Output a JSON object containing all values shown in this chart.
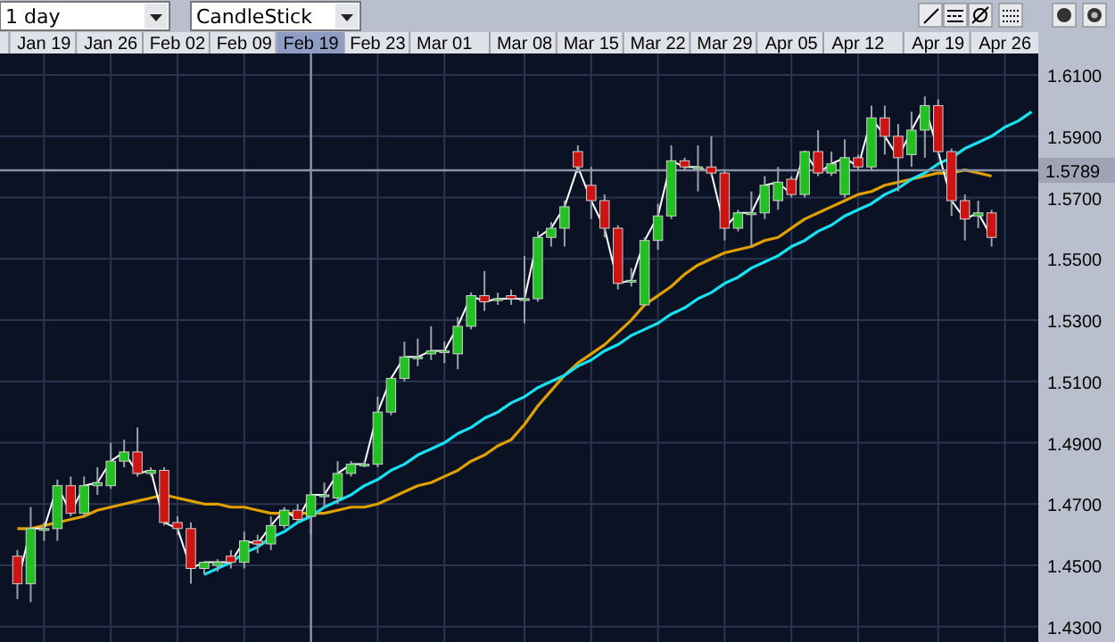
{
  "chart_data": {
    "type": "candlestick",
    "annotations": [
      "1 day",
      "CandleStick"
    ],
    "categories": [
      null,
      null,
      "Jan 19",
      null,
      null,
      null,
      null,
      "Jan 26",
      null,
      null,
      null,
      null,
      "Feb 02",
      null,
      null,
      null,
      null,
      "Feb 09",
      null,
      null,
      null,
      null,
      "Feb 19",
      null,
      null,
      null,
      null,
      "Feb 23",
      null,
      null,
      null,
      null,
      "Mar 01",
      null,
      null,
      null,
      null,
      null,
      "Mar 08",
      null,
      null,
      null,
      null,
      "Mar 15",
      null,
      null,
      null,
      null,
      "Mar 22",
      null,
      null,
      null,
      null,
      "Mar 29",
      null,
      null,
      null,
      null,
      "Apr 05",
      null,
      null,
      null,
      null,
      "Apr 12",
      null,
      null,
      null,
      null,
      null,
      "Apr 19",
      null,
      null,
      null,
      null,
      "Apr 26",
      null,
      null
    ],
    "ohlc": [
      [
        1.453,
        1.455,
        1.439,
        1.444
      ],
      [
        1.444,
        1.469,
        1.438,
        1.462
      ],
      [
        1.462,
        1.464,
        1.458,
        1.462
      ],
      [
        1.462,
        1.478,
        1.458,
        1.476
      ],
      [
        1.476,
        1.479,
        1.466,
        1.467
      ],
      [
        1.467,
        1.479,
        1.466,
        1.476
      ],
      [
        1.476,
        1.482,
        1.473,
        1.477
      ],
      [
        1.476,
        1.49,
        1.475,
        1.484
      ],
      [
        1.484,
        1.491,
        1.482,
        1.487
      ],
      [
        1.487,
        1.495,
        1.479,
        1.48
      ],
      [
        1.48,
        1.482,
        1.479,
        1.481
      ],
      [
        1.481,
        1.482,
        1.463,
        1.464
      ],
      [
        1.464,
        1.466,
        1.46,
        1.462
      ],
      [
        1.462,
        1.464,
        1.444,
        1.449
      ],
      [
        1.449,
        1.451,
        1.447,
        1.451
      ],
      [
        1.45,
        1.452,
        1.448,
        1.451
      ],
      [
        1.453,
        1.455,
        1.449,
        1.451
      ],
      [
        1.451,
        1.461,
        1.449,
        1.458
      ],
      [
        1.458,
        1.46,
        1.454,
        1.457
      ],
      [
        1.457,
        1.466,
        1.455,
        1.463
      ],
      [
        1.463,
        1.469,
        1.462,
        1.468
      ],
      [
        1.468,
        1.47,
        1.464,
        1.465
      ],
      [
        1.466,
        1.474,
        1.46,
        1.473
      ],
      [
        1.473,
        1.477,
        1.469,
        1.473
      ],
      [
        1.472,
        1.484,
        1.47,
        1.48
      ],
      [
        1.48,
        1.484,
        1.479,
        1.483
      ],
      [
        1.483,
        1.484,
        1.482,
        1.483
      ],
      [
        1.483,
        1.505,
        1.482,
        1.5
      ],
      [
        1.5,
        1.511,
        1.499,
        1.511
      ],
      [
        1.511,
        1.523,
        1.51,
        1.518
      ],
      [
        1.518,
        1.524,
        1.515,
        1.518
      ],
      [
        1.519,
        1.528,
        1.517,
        1.52
      ],
      [
        1.52,
        1.523,
        1.516,
        1.52
      ],
      [
        1.519,
        1.531,
        1.514,
        1.528
      ],
      [
        1.528,
        1.539,
        1.527,
        1.538
      ],
      [
        1.538,
        1.546,
        1.533,
        1.536
      ],
      [
        1.537,
        1.539,
        1.535,
        1.537
      ],
      [
        1.538,
        1.54,
        1.535,
        1.537
      ],
      [
        1.537,
        1.551,
        1.529,
        1.537
      ],
      [
        1.537,
        1.559,
        1.536,
        1.557
      ],
      [
        1.557,
        1.562,
        1.554,
        1.56
      ],
      [
        1.56,
        1.569,
        1.554,
        1.567
      ],
      [
        1.585,
        1.587,
        1.578,
        1.58
      ],
      [
        1.574,
        1.58,
        1.563,
        1.569
      ],
      [
        1.569,
        1.571,
        1.557,
        1.56
      ],
      [
        1.56,
        1.561,
        1.54,
        1.542
      ],
      [
        1.543,
        1.547,
        1.541,
        1.543
      ],
      [
        1.535,
        1.557,
        1.535,
        1.556
      ],
      [
        1.556,
        1.568,
        1.553,
        1.564
      ],
      [
        1.564,
        1.587,
        1.563,
        1.582
      ],
      [
        1.582,
        1.583,
        1.579,
        1.58
      ],
      [
        1.58,
        1.587,
        1.572,
        1.58
      ],
      [
        1.58,
        1.59,
        1.577,
        1.578
      ],
      [
        1.578,
        1.579,
        1.556,
        1.56
      ],
      [
        1.56,
        1.566,
        1.559,
        1.565
      ],
      [
        1.565,
        1.572,
        1.554,
        1.565
      ],
      [
        1.565,
        1.577,
        1.563,
        1.574
      ],
      [
        1.569,
        1.58,
        1.566,
        1.575
      ],
      [
        1.576,
        1.577,
        1.57,
        1.571
      ],
      [
        1.571,
        1.585,
        1.57,
        1.585
      ],
      [
        1.585,
        1.592,
        1.577,
        1.578
      ],
      [
        1.578,
        1.585,
        1.577,
        1.581
      ],
      [
        1.571,
        1.589,
        1.57,
        1.583
      ],
      [
        1.583,
        1.584,
        1.579,
        1.58
      ],
      [
        1.58,
        1.6,
        1.579,
        1.596
      ],
      [
        1.596,
        1.6,
        1.584,
        1.59
      ],
      [
        1.59,
        1.594,
        1.572,
        1.583
      ],
      [
        1.584,
        1.598,
        1.58,
        1.592
      ],
      [
        1.592,
        1.603,
        1.583,
        1.6
      ],
      [
        1.6,
        1.602,
        1.584,
        1.585
      ],
      [
        1.585,
        1.586,
        1.564,
        1.569
      ],
      [
        1.569,
        1.571,
        1.556,
        1.563
      ],
      [
        1.564,
        1.569,
        1.56,
        1.565
      ],
      [
        1.565,
        1.566,
        1.554,
        1.557
      ],
      null,
      null,
      null
    ],
    "series": [
      {
        "type": "line",
        "color": "#ffffff",
        "values": [
          1.444,
          1.462,
          1.462,
          1.476,
          1.467,
          1.476,
          1.477,
          1.484,
          1.487,
          1.48,
          1.481,
          1.464,
          1.462,
          1.449,
          1.451,
          1.451,
          1.451,
          1.458,
          1.457,
          1.463,
          1.468,
          1.465,
          1.473,
          1.473,
          1.48,
          1.483,
          1.483,
          1.5,
          1.511,
          1.518,
          1.518,
          1.52,
          1.52,
          1.528,
          1.538,
          1.536,
          1.537,
          1.537,
          1.537,
          1.557,
          1.56,
          1.567,
          1.58,
          1.569,
          1.56,
          1.542,
          1.543,
          1.556,
          1.564,
          1.582,
          1.58,
          1.58,
          1.578,
          1.56,
          1.565,
          1.565,
          1.574,
          1.575,
          1.571,
          1.585,
          1.578,
          1.581,
          1.583,
          1.58,
          1.596,
          1.59,
          1.583,
          1.592,
          1.6,
          1.585,
          1.569,
          1.563,
          1.565,
          1.557,
          null,
          null,
          null
        ]
      },
      {
        "type": "line",
        "color": "#e0a000",
        "values": [
          1.462,
          1.462,
          1.463,
          1.464,
          1.465,
          1.466,
          1.468,
          1.469,
          1.47,
          1.471,
          1.472,
          1.473,
          1.472,
          1.471,
          1.47,
          1.47,
          1.469,
          1.469,
          1.468,
          1.467,
          1.467,
          1.467,
          1.467,
          1.467,
          1.468,
          1.469,
          1.469,
          1.47,
          1.472,
          1.474,
          1.476,
          1.477,
          1.479,
          1.481,
          1.484,
          1.486,
          1.489,
          1.491,
          1.496,
          1.502,
          1.507,
          1.512,
          1.516,
          1.519,
          1.522,
          1.526,
          1.53,
          1.535,
          1.538,
          1.541,
          1.545,
          1.548,
          1.55,
          1.552,
          1.553,
          1.554,
          1.556,
          1.557,
          1.56,
          1.563,
          1.565,
          1.567,
          1.569,
          1.571,
          1.572,
          1.574,
          1.575,
          1.576,
          1.577,
          1.578,
          1.578,
          1.579,
          1.578,
          1.577,
          null,
          null,
          null
        ]
      },
      {
        "type": "line",
        "color": "#19e0f0",
        "values": [
          null,
          null,
          null,
          null,
          null,
          null,
          null,
          null,
          null,
          null,
          null,
          null,
          null,
          null,
          1.447,
          1.449,
          1.451,
          1.454,
          1.456,
          1.459,
          1.461,
          1.464,
          1.466,
          1.469,
          1.471,
          1.473,
          1.476,
          1.478,
          1.481,
          1.483,
          1.486,
          1.488,
          1.49,
          1.493,
          1.495,
          1.498,
          1.5,
          1.503,
          1.505,
          1.508,
          1.51,
          1.512,
          1.515,
          1.517,
          1.52,
          1.522,
          1.525,
          1.527,
          1.529,
          1.532,
          1.534,
          1.537,
          1.539,
          1.542,
          1.544,
          1.547,
          1.549,
          1.551,
          1.554,
          1.556,
          1.559,
          1.561,
          1.564,
          1.566,
          1.568,
          1.571,
          1.573,
          1.576,
          1.578,
          1.581,
          1.583,
          1.586,
          1.588,
          1.59,
          1.593,
          1.595,
          1.598
        ]
      }
    ],
    "ylim": [
      1.425,
      1.617
    ],
    "yticks": [
      {
        "value": 1.43,
        "label": "1.4300"
      },
      {
        "value": 1.45,
        "label": "1.4500"
      },
      {
        "value": 1.47,
        "label": "1.4700"
      },
      {
        "value": 1.49,
        "label": "1.4900"
      },
      {
        "value": 1.51,
        "label": "1.5100"
      },
      {
        "value": 1.53,
        "label": "1.5300"
      },
      {
        "value": 1.55,
        "label": "1.5500"
      },
      {
        "value": 1.57,
        "label": "1.5700"
      },
      {
        "value": 1.59,
        "label": "1.5900"
      },
      {
        "value": 1.61,
        "label": "1.6100"
      }
    ],
    "ref_lines": [
      {
        "axis": "y",
        "value": 1.5789,
        "label": "1.5789",
        "color": "#8a92a8"
      },
      {
        "axis": "x",
        "value": "Feb 19",
        "color": "#8a92a8"
      }
    ],
    "grid": true
  }
}
